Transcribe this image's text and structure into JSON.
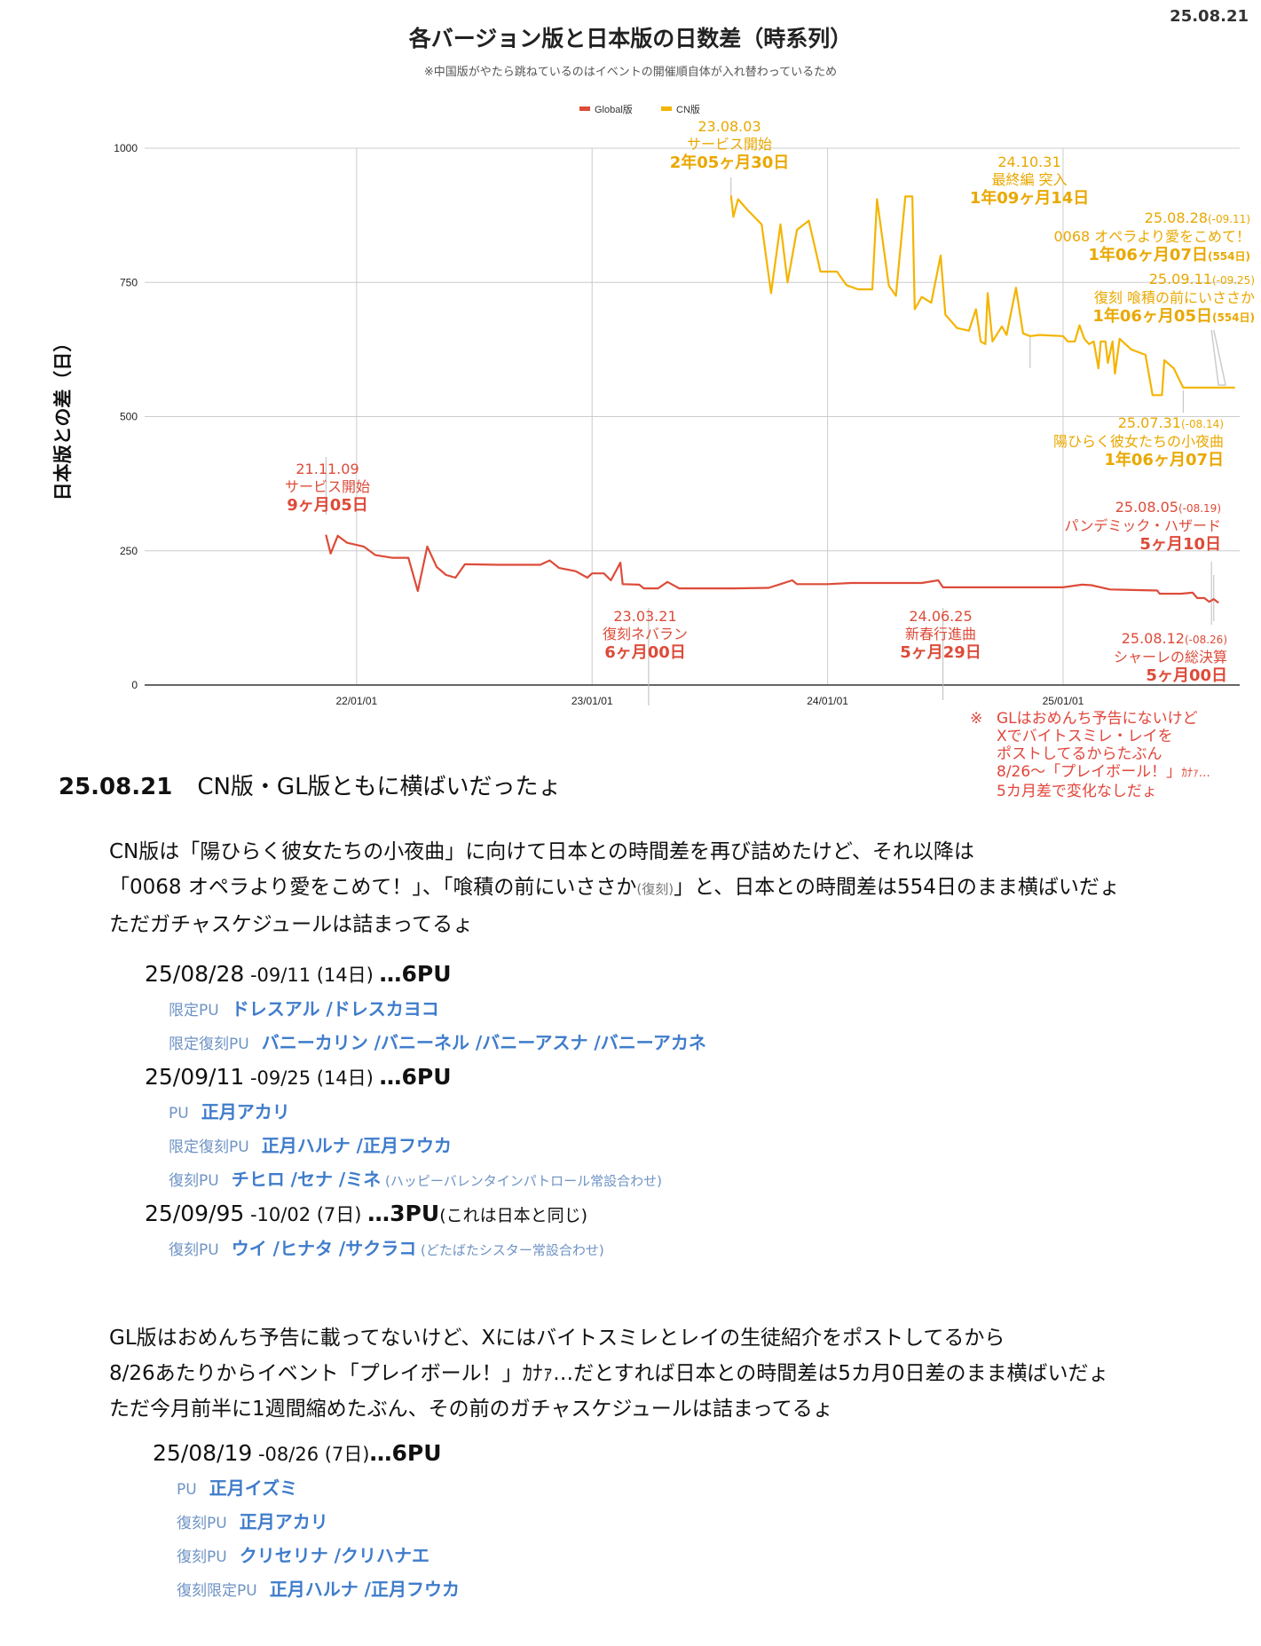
{
  "date_stamp": "25.08.21",
  "chart_data": {
    "type": "line",
    "title": "各バージョン版と日本版の日数差（時系列）",
    "subtitle": "※中国版がやたら跳ねているのはイベントの開催順自体が入れ替わっているため",
    "xlabel": "",
    "ylabel": "日本版との差（日）",
    "ylim": [
      0,
      1000
    ],
    "yticks": [
      "0",
      "250",
      "500",
      "750",
      "1000"
    ],
    "ytick_values": [
      0,
      250,
      500,
      750,
      1000
    ],
    "xlim": [
      2021.1,
      2025.75
    ],
    "xticks": [
      "22/01/01",
      "23/01/01",
      "24/01/01",
      "25/01/01"
    ],
    "xtick_values": [
      2022.0,
      2023.0,
      2024.0,
      2025.0
    ],
    "grid": true,
    "legend_position": "top-center",
    "series": [
      {
        "name": "Global版",
        "color": "#dd4b39",
        "points": [
          [
            2021.87,
            280
          ],
          [
            2021.89,
            245
          ],
          [
            2021.92,
            278
          ],
          [
            2021.96,
            265
          ],
          [
            2022.03,
            258
          ],
          [
            2022.08,
            242
          ],
          [
            2022.15,
            237
          ],
          [
            2022.22,
            237
          ],
          [
            2022.26,
            175
          ],
          [
            2022.3,
            258
          ],
          [
            2022.34,
            220
          ],
          [
            2022.38,
            205
          ],
          [
            2022.42,
            200
          ],
          [
            2022.46,
            225
          ],
          [
            2022.6,
            224
          ],
          [
            2022.78,
            224
          ],
          [
            2022.82,
            232
          ],
          [
            2022.86,
            218
          ],
          [
            2022.93,
            212
          ],
          [
            2022.98,
            200
          ],
          [
            2023.0,
            208
          ],
          [
            2023.05,
            208
          ],
          [
            2023.08,
            195
          ],
          [
            2023.12,
            228
          ],
          [
            2023.13,
            188
          ],
          [
            2023.2,
            187
          ],
          [
            2023.22,
            180
          ],
          [
            2023.28,
            180
          ],
          [
            2023.32,
            192
          ],
          [
            2023.37,
            180
          ],
          [
            2023.6,
            180
          ],
          [
            2023.75,
            181
          ],
          [
            2023.8,
            188
          ],
          [
            2023.85,
            195
          ],
          [
            2023.87,
            188
          ],
          [
            2024.0,
            188
          ],
          [
            2024.1,
            190
          ],
          [
            2024.4,
            190
          ],
          [
            2024.47,
            195
          ],
          [
            2024.49,
            182
          ],
          [
            2025.0,
            182
          ],
          [
            2025.08,
            187
          ],
          [
            2025.12,
            186
          ],
          [
            2025.2,
            178
          ],
          [
            2025.4,
            176
          ],
          [
            2025.41,
            170
          ],
          [
            2025.5,
            170
          ],
          [
            2025.55,
            172
          ],
          [
            2025.57,
            162
          ],
          [
            2025.6,
            162
          ],
          [
            2025.62,
            155
          ],
          [
            2025.64,
            160
          ],
          [
            2025.66,
            153
          ]
        ]
      },
      {
        "name": "CN版",
        "color": "#f4b400",
        "points": [
          [
            2023.59,
            912
          ],
          [
            2023.6,
            872
          ],
          [
            2023.62,
            905
          ],
          [
            2023.66,
            885
          ],
          [
            2023.72,
            858
          ],
          [
            2023.76,
            730
          ],
          [
            2023.8,
            858
          ],
          [
            2023.83,
            750
          ],
          [
            2023.87,
            848
          ],
          [
            2023.92,
            865
          ],
          [
            2023.97,
            770
          ],
          [
            2024.04,
            770
          ],
          [
            2024.08,
            745
          ],
          [
            2024.13,
            737
          ],
          [
            2024.19,
            737
          ],
          [
            2024.21,
            905
          ],
          [
            2024.26,
            744
          ],
          [
            2024.29,
            725
          ],
          [
            2024.33,
            910
          ],
          [
            2024.36,
            910
          ],
          [
            2024.37,
            700
          ],
          [
            2024.4,
            723
          ],
          [
            2024.44,
            712
          ],
          [
            2024.48,
            800
          ],
          [
            2024.5,
            690
          ],
          [
            2024.55,
            665
          ],
          [
            2024.6,
            660
          ],
          [
            2024.63,
            700
          ],
          [
            2024.65,
            640
          ],
          [
            2024.67,
            635
          ],
          [
            2024.68,
            730
          ],
          [
            2024.7,
            640
          ],
          [
            2024.74,
            668
          ],
          [
            2024.76,
            652
          ],
          [
            2024.8,
            740
          ],
          [
            2024.83,
            655
          ],
          [
            2024.86,
            650
          ],
          [
            2024.9,
            652
          ],
          [
            2025.0,
            650
          ],
          [
            2025.02,
            640
          ],
          [
            2025.05,
            640
          ],
          [
            2025.07,
            670
          ],
          [
            2025.09,
            645
          ],
          [
            2025.11,
            635
          ],
          [
            2025.13,
            640
          ],
          [
            2025.15,
            590
          ],
          [
            2025.16,
            640
          ],
          [
            2025.18,
            640
          ],
          [
            2025.19,
            600
          ],
          [
            2025.21,
            640
          ],
          [
            2025.22,
            580
          ],
          [
            2025.24,
            645
          ],
          [
            2025.29,
            625
          ],
          [
            2025.35,
            615
          ],
          [
            2025.38,
            540
          ],
          [
            2025.42,
            540
          ],
          [
            2025.43,
            605
          ],
          [
            2025.47,
            590
          ],
          [
            2025.51,
            554
          ],
          [
            2025.73,
            554
          ]
        ]
      }
    ],
    "annotations": {
      "gl_start": {
        "date": "21.11.09",
        "event": "サービス開始",
        "diff": "9ヶ月05日"
      },
      "gl_nebaran": {
        "date": "23.03.21",
        "event": "復刻ネバラン",
        "diff": "6ヶ月00日"
      },
      "gl_shinshun": {
        "date": "24.06.25",
        "event": "新春行進曲",
        "diff": "5ヶ月29日"
      },
      "gl_pandemic": {
        "date": "25.08.05",
        "range": "(-08.19)",
        "event": "パンデミック・ハザード",
        "diff": "5ヶ月10日"
      },
      "gl_schale": {
        "date": "25.08.12",
        "range": "(-08.26)",
        "event": "シャーレの総決算",
        "diff": "5ヶ月00日"
      },
      "cn_start": {
        "date": "23.08.03",
        "event": "サービス開始",
        "diff": "2年05ヶ月30日"
      },
      "cn_final": {
        "date": "24.10.31",
        "event": "最終編 突入",
        "diff": "1年09ヶ月14日"
      },
      "cn_0068": {
        "date": "25.08.28",
        "range": "(-09.11)",
        "event": "0068 オペラより愛をこめて！",
        "diff": "1年06ヶ月07日",
        "days": "(554日)"
      },
      "cn_kuizumi": {
        "date": "25.09.11",
        "range": "(-09.25)",
        "event": "復刻 喰積の前にいささか",
        "diff": "1年06ヶ月05日",
        "days": "(554日)"
      },
      "cn_sayokyoku": {
        "date": "25.07.31",
        "range": "(-08.14)",
        "event": "陽ひらく彼女たちの小夜曲",
        "diff": "1年06ヶ月07日"
      }
    },
    "note": {
      "mark": "※",
      "lines": [
        "GLはおめんち予告にないけど",
        "Xでバイトスミレ・レイを",
        "ポストしてるからたぶん",
        "8/26～「プレイボール！」",
        "5カ月差で変化なしだょ"
      ],
      "line4_suffix": "ｶﾅｧ…"
    }
  },
  "post": {
    "date": "25.08.21",
    "headline": "CN版・GL版ともに横ばいだったょ",
    "cn_para": {
      "line1": "CN版は「陽ひらく彼女たちの小夜曲」に向けて日本との時間差を再び詰めたけど、それ以降は",
      "line2a": "「0068 オペラより愛をこめて！」、「喰積の前にいささか",
      "line2_small": "(復刻)",
      "line2b": "」と、日本との時間差は554日のまま横ばいだょ",
      "line3": "ただガチャスケジュールは詰まってるょ"
    },
    "cn_schedule": [
      {
        "start": "25/08/28",
        "range": " -09/11 (14日) ",
        "pu": "…6PU",
        "note": "",
        "rows": [
          {
            "label": "限定PU",
            "names": "ドレスアル /ドレスカヨコ",
            "remark": ""
          },
          {
            "label": "限定復刻PU",
            "names": "バニーカリン /バニーネル /バニーアスナ /バニーアカネ",
            "remark": ""
          }
        ]
      },
      {
        "start": "25/09/11",
        "range": " -09/25 (14日) ",
        "pu": "…6PU",
        "note": "",
        "rows": [
          {
            "label": "PU",
            "names": "正月アカリ",
            "remark": ""
          },
          {
            "label": "限定復刻PU",
            "names": "正月ハルナ /正月フウカ",
            "remark": ""
          },
          {
            "label": "復刻PU",
            "names": "チヒロ /セナ /ミネ",
            "remark": " (ハッピーバレンタインパトロール常設合わせ)"
          }
        ]
      },
      {
        "start": "25/09/95",
        "range": " -10/02 (7日) ",
        "pu": "…3PU",
        "note": "(これは日本と同じ)",
        "rows": [
          {
            "label": "復刻PU",
            "names": "ウイ /ヒナタ /サクラコ",
            "remark": " (どたばたシスター常設合わせ)"
          }
        ]
      }
    ],
    "gl_para": {
      "line1": "GL版はおめんち予告に載ってないけど、Xにはバイトスミレとレイの生徒紹介をポストしてるから",
      "line2": "8/26あたりからイベント「プレイボール！」ｶﾅｧ…だとすれば日本との時間差は5カ月0日差のまま横ばいだょ",
      "line3": "ただ今月前半に1週間縮めたぶん、その前のガチャスケジュールは詰まってるょ"
    },
    "gl_schedule": [
      {
        "start": "25/08/19",
        "range": " -08/26 (7日)",
        "pu": "…6PU",
        "note": "",
        "rows": [
          {
            "label": "PU",
            "names": "正月イズミ",
            "remark": ""
          },
          {
            "label": "復刻PU",
            "names": "正月アカリ",
            "remark": ""
          },
          {
            "label": "復刻PU",
            "names": "クリセリナ /クリハナエ",
            "remark": ""
          },
          {
            "label": "復刻限定PU",
            "names": "正月ハルナ /正月フウカ",
            "remark": ""
          }
        ]
      }
    ]
  }
}
